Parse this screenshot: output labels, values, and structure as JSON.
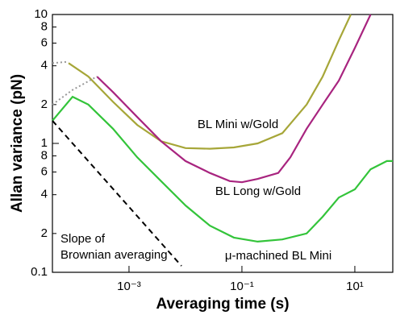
{
  "chart_data": {
    "type": "line",
    "xlabel": "Averaging time (s)",
    "ylabel": "Allan variance (pN)",
    "xscale": "log",
    "yscale": "log",
    "xlim": [
      4.4e-05,
      47
    ],
    "ylim": [
      0.1,
      10
    ],
    "xticks": [
      {
        "value": 0.001,
        "label": "10⁻³"
      },
      {
        "value": 0.1,
        "label": "10⁻¹"
      },
      {
        "value": 10,
        "label": "10¹"
      }
    ],
    "yticks": [
      0.1,
      {
        "value": 0.2,
        "label": "2"
      },
      {
        "value": 0.4,
        "label": "4"
      },
      {
        "value": 0.6,
        "label": "6"
      },
      {
        "value": 0.8,
        "label": "8"
      },
      1,
      2,
      4,
      6,
      8,
      10
    ],
    "annotations": [
      "Slope of",
      "Brownian averaging"
    ],
    "series": [
      {
        "name": "BL Mini w/Gold",
        "color": "#a6a638",
        "x": [
          8.5e-05,
          0.00019,
          0.00052,
          0.0014,
          0.0037,
          0.01,
          0.027,
          0.072,
          0.19,
          0.52,
          1.4,
          2.7,
          5.2,
          8.5
        ],
        "values": [
          4.2,
          3.3,
          2.1,
          1.39,
          1.04,
          0.92,
          0.91,
          0.93,
          1.0,
          1.2,
          2.0,
          3.3,
          6.3,
          10
        ]
      },
      {
        "name": "BL Long w/Gold",
        "color": "#a8247f",
        "x": [
          0.00027,
          0.00052,
          0.0014,
          0.0037,
          0.01,
          0.027,
          0.061,
          0.1,
          0.19,
          0.44,
          0.72,
          1.4,
          2.7,
          5.2,
          10,
          19
        ],
        "values": [
          3.3,
          2.5,
          1.6,
          1.04,
          0.73,
          0.59,
          0.51,
          0.5,
          0.53,
          0.59,
          0.78,
          1.3,
          2.0,
          3.07,
          5.5,
          10
        ]
      },
      {
        "name": "μ-machined BL Mini",
        "color": "#33c43a",
        "x": [
          4.4e-05,
          0.0001,
          0.00019,
          0.00052,
          0.0014,
          0.0037,
          0.01,
          0.027,
          0.072,
          0.19,
          0.52,
          1.4,
          2.7,
          5.2,
          10,
          19,
          37,
          47
        ],
        "values": [
          1.5,
          2.3,
          2.0,
          1.3,
          0.78,
          0.51,
          0.33,
          0.23,
          0.186,
          0.173,
          0.18,
          0.2,
          0.27,
          0.38,
          0.44,
          0.63,
          0.73,
          0.73
        ]
      },
      {
        "color": "#999999",
        "dash": "dotted",
        "x": [
          4.4e-05,
          8.5e-05
        ],
        "values": [
          4.2,
          4.3
        ]
      },
      {
        "color": "#999999",
        "dash": "dotted",
        "x": [
          4.4e-05,
          0.0001,
          0.00027
        ],
        "values": [
          2.0,
          2.6,
          3.3
        ]
      },
      {
        "color": "#000000",
        "dash": "dashed",
        "x": [
          4.4e-05,
          0.0085
        ],
        "values": [
          1.5,
          0.112
        ]
      }
    ]
  }
}
